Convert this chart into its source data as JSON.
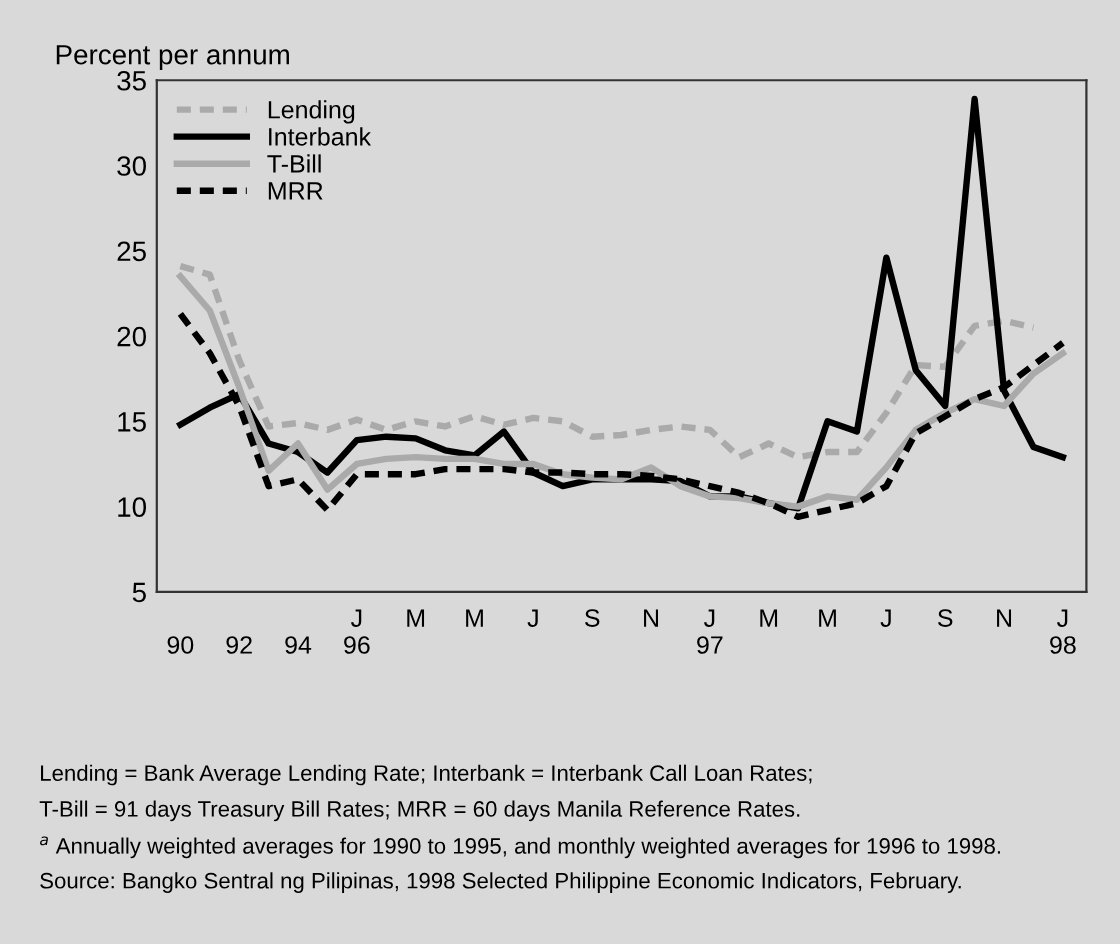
{
  "chart_data": {
    "type": "line",
    "ylabel": "Percent per annum",
    "categories": [
      "\n90",
      null,
      "\n92",
      null,
      "\n94",
      null,
      "J\n96",
      null,
      "M",
      null,
      "M",
      null,
      "J",
      null,
      "S",
      null,
      "N",
      null,
      "J\n97",
      null,
      "M",
      null,
      "M",
      null,
      "J",
      null,
      "S",
      null,
      "N",
      null,
      "J\n98"
    ],
    "series": [
      {
        "name": "Lending",
        "color": "#aaaaaa",
        "line_style": "dashed",
        "values": [
          24.1,
          23.6,
          18.6,
          14.7,
          14.9,
          14.5,
          15.1,
          14.5,
          15.0,
          14.7,
          15.3,
          14.8,
          15.2,
          15.0,
          14.1,
          14.2,
          14.5,
          14.7,
          14.5,
          12.9,
          13.7,
          12.9,
          13.2,
          13.2,
          15.5,
          18.3,
          18.2,
          20.6,
          20.9,
          20.5,
          null
        ]
      },
      {
        "name": "Interbank",
        "color": "#000000",
        "line_style": "solid",
        "values": [
          14.8,
          15.8,
          16.6,
          13.7,
          13.2,
          12.0,
          13.9,
          14.1,
          14.0,
          13.3,
          13.0,
          14.4,
          12.0,
          11.2,
          11.6,
          11.6,
          11.6,
          11.5,
          10.6,
          10.6,
          10.2,
          9.9,
          15.0,
          14.4,
          24.6,
          18.0,
          15.9,
          33.9,
          16.8,
          13.5,
          12.9
        ]
      },
      {
        "name": "T-Bill",
        "color": "#aaaaaa",
        "line_style": "solid",
        "values": [
          23.5,
          21.5,
          17.0,
          12.1,
          13.7,
          11.0,
          12.5,
          12.8,
          12.9,
          12.8,
          12.8,
          12.5,
          12.5,
          11.9,
          11.7,
          11.6,
          12.3,
          11.2,
          10.6,
          10.5,
          10.2,
          10.0,
          10.6,
          10.4,
          12.3,
          14.5,
          15.5,
          16.3,
          15.9,
          17.8,
          19.0
        ]
      },
      {
        "name": "MRR",
        "color": "#000000",
        "line_style": "dashed",
        "values": [
          21.3,
          19.0,
          15.9,
          11.2,
          11.6,
          9.8,
          11.9,
          11.9,
          11.9,
          12.2,
          12.2,
          12.2,
          12.0,
          12.0,
          11.9,
          11.9,
          11.8,
          11.6,
          11.2,
          10.8,
          10.2,
          9.4,
          9.8,
          10.2,
          11.2,
          14.3,
          15.3,
          16.3,
          17.0,
          18.3,
          19.6
        ]
      }
    ],
    "ylim": [
      5,
      35
    ],
    "yticks": [
      5,
      10,
      15,
      20,
      25,
      30,
      35
    ],
    "grid": false,
    "legend": "top left",
    "annotations": [
      "Lending = Bank Average Lending Rate; Interbank = Interbank Call Loan Rates;",
      "T-Bill = 91 days Treasury Bill Rates; MRR = 60 days Manila Reference Rates.",
      "$^{a}$ Annually weighted averages for 1990 to 1995, and monthly weighted averages for 1996 to 1998.",
      "Source: Bangko Sentral ng Pilipinas, 1998 Selected Philippine Economic Indicators, February."
    ]
  }
}
